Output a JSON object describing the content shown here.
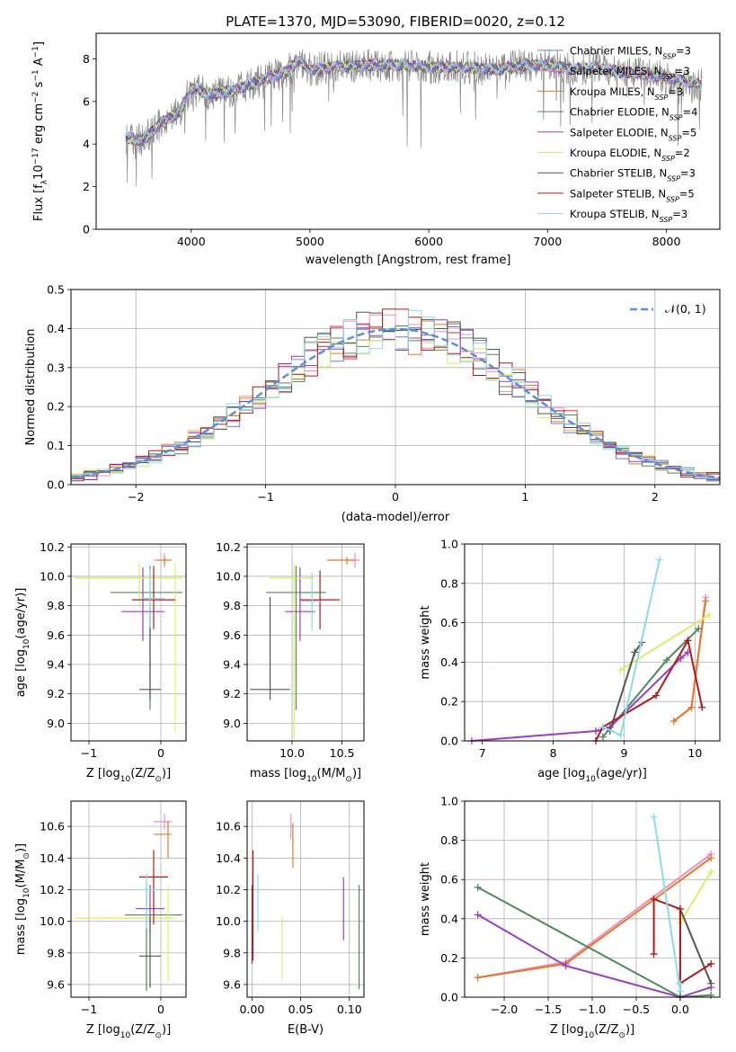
{
  "title": "PLATE=1370, MJD=53090, FIBERID=0020, z=0.12",
  "colors": {
    "series": [
      "#6a7de0",
      "#f28cc4",
      "#e07b2c",
      "#4e8a5a",
      "#9a3ec2",
      "#d8ee63",
      "#555555",
      "#b01a1a",
      "#88dde6"
    ],
    "grid": "#b0b0b0",
    "gauss": "#5b8fd6"
  },
  "chart_data": [
    {
      "id": "spectrum",
      "type": "line",
      "xlabel": "wavelength [Angstrom, rest frame]",
      "ylabel": "Flux [f_λ 10^-17 erg cm^-2 s^-1 A^-1]",
      "xlim": [
        3200,
        8450
      ],
      "ylim": [
        0,
        9.2
      ],
      "xticks": [
        4000,
        5000,
        6000,
        7000,
        8000
      ],
      "yticks": [
        0,
        2,
        4,
        6,
        8
      ],
      "grid": false,
      "legend_position": "top-right",
      "legend": [
        {
          "label": "Chabrier MILES, N",
          "sub": "SSP",
          "suffix": "=3"
        },
        {
          "label": "Salpeter MILES, N",
          "sub": "SSP",
          "suffix": "=3"
        },
        {
          "label": "Kroupa MILES, N",
          "sub": "SSP",
          "suffix": "=3"
        },
        {
          "label": "Chabrier ELODIE, N",
          "sub": "SSP",
          "suffix": "=4"
        },
        {
          "label": "Salpeter ELODIE, N",
          "sub": "SSP",
          "suffix": "=5"
        },
        {
          "label": "Kroupa ELODIE, N",
          "sub": "SSP",
          "suffix": "=2"
        },
        {
          "label": "Chabrier STELIB, N",
          "sub": "SSP",
          "suffix": "=3"
        },
        {
          "label": "Salpeter STELIB, N",
          "sub": "SSP",
          "suffix": "=5"
        },
        {
          "label": "Kroupa STELIB, N",
          "sub": "SSP",
          "suffix": "=3"
        }
      ],
      "continuum": {
        "x": [
          3450,
          3600,
          3750,
          3900,
          4000,
          4200,
          4400,
          4600,
          4800,
          4900,
          5000,
          5200,
          5500,
          5800,
          6000,
          6300,
          6600,
          6800,
          7000,
          7200,
          7400,
          7600,
          7800,
          8000,
          8200,
          8300
        ],
        "y": [
          4.3,
          4.2,
          5.0,
          5.5,
          6.6,
          6.3,
          6.6,
          7.0,
          7.4,
          7.9,
          7.5,
          7.6,
          7.7,
          7.7,
          7.6,
          7.6,
          7.5,
          7.7,
          7.7,
          7.5,
          7.6,
          7.4,
          7.3,
          7.1,
          6.9,
          6.8
        ]
      }
    },
    {
      "id": "residuals",
      "type": "step-histogram",
      "xlabel": "(data-model)/error",
      "ylabel": "Normed distribution",
      "xlim": [
        -2.5,
        2.5
      ],
      "ylim": [
        0,
        0.5
      ],
      "xticks": [
        -2,
        -1,
        0,
        1,
        2
      ],
      "yticks": [
        0.0,
        0.1,
        0.2,
        0.3,
        0.4,
        0.5
      ],
      "grid": true,
      "bins": {
        "start": -2.5,
        "width": 0.1,
        "count": 50
      },
      "gaussian": {
        "label": "𝒩(0, 1)",
        "mean": 0,
        "sigma": 1
      },
      "legend_position": "top-right"
    },
    {
      "id": "age-vs-Z",
      "type": "errorbar",
      "xlabel": "Z [log10(Z/Z⊙)]",
      "ylabel": "age [log10(age/yr)]",
      "xlim": [
        -1.25,
        0.35
      ],
      "ylim": [
        8.88,
        10.22
      ],
      "xticks": [
        -1,
        0
      ],
      "yticks": [
        9.0,
        9.2,
        9.4,
        9.6,
        9.8,
        10.0,
        10.2
      ],
      "grid": true,
      "points": [
        {
          "x": 0.05,
          "y": 10.11,
          "xerr": [
            0.15,
            0.05
          ],
          "yerr": [
            0.05,
            0.05
          ],
          "color": 1
        },
        {
          "x": 0.05,
          "y": 10.11,
          "xerr": [
            0.1,
            0.1
          ],
          "yerr": [
            0.03,
            0.02
          ],
          "color": 2
        },
        {
          "x": -0.15,
          "y": 9.89,
          "xerr": [
            0.55,
            0.45
          ],
          "yerr": [
            0.8,
            0.18
          ],
          "color": 3
        },
        {
          "x": -0.25,
          "y": 9.76,
          "xerr": [
            0.3,
            0.3
          ],
          "yerr": [
            0.2,
            0.3
          ],
          "color": 4
        },
        {
          "x": -0.3,
          "y": 9.99,
          "xerr": [
            0.9,
            0.6
          ],
          "yerr": [
            0.2,
            0.1
          ],
          "color": 5
        },
        {
          "x": 0.2,
          "y": 9.99,
          "xerr": [
            1.4,
            0.1
          ],
          "yerr": [
            1.05,
            0.1
          ],
          "color": 5
        },
        {
          "x": -0.15,
          "y": 9.23,
          "xerr": [
            0.15,
            0.15
          ],
          "yerr": [
            0.07,
            0.55
          ],
          "color": 6
        },
        {
          "x": -0.1,
          "y": 9.84,
          "xerr": [
            0.3,
            0.3
          ],
          "yerr": [
            0.2,
            0.23
          ],
          "color": 7
        },
        {
          "x": -0.15,
          "y": 9.85,
          "xerr": [
            0.1,
            0.2
          ],
          "yerr": [
            0.2,
            0.2
          ],
          "color": 8
        }
      ]
    },
    {
      "id": "age-vs-mass",
      "type": "errorbar",
      "xlabel": "mass [log10(M/M⊙)]",
      "ylabel": "",
      "xlim": [
        9.55,
        10.72
      ],
      "ylim": [
        8.88,
        10.22
      ],
      "xticks": [
        10.0,
        10.5
      ],
      "yticks": [
        9.0,
        9.2,
        9.4,
        9.6,
        9.8,
        10.0,
        10.2
      ],
      "grid": true,
      "points": [
        {
          "x": 10.63,
          "y": 10.11,
          "xerr": [
            0.1,
            0.05
          ],
          "yerr": [
            0.05,
            0.05
          ],
          "color": 1
        },
        {
          "x": 10.55,
          "y": 10.11,
          "xerr": [
            0.2,
            0.08
          ],
          "yerr": [
            0.03,
            0.02
          ],
          "color": 2
        },
        {
          "x": 10.04,
          "y": 9.89,
          "xerr": [
            0.3,
            0.3
          ],
          "yerr": [
            0.8,
            0.18
          ],
          "color": 3
        },
        {
          "x": 10.08,
          "y": 9.76,
          "xerr": [
            0.15,
            0.15
          ],
          "yerr": [
            0.2,
            0.3
          ],
          "color": 4
        },
        {
          "x": 10.02,
          "y": 9.99,
          "xerr": [
            0.25,
            0.2
          ],
          "yerr": [
            1.1,
            0.1
          ],
          "color": 5
        },
        {
          "x": 9.78,
          "y": 9.23,
          "xerr": [
            0.2,
            0.2
          ],
          "yerr": [
            0.07,
            0.63
          ],
          "color": 6
        },
        {
          "x": 10.28,
          "y": 9.84,
          "xerr": [
            0.2,
            0.2
          ],
          "yerr": [
            0.2,
            0.2
          ],
          "color": 7
        },
        {
          "x": 10.2,
          "y": 9.83,
          "xerr": [
            0.1,
            0.1
          ],
          "yerr": [
            0.2,
            0.2
          ],
          "color": 8
        }
      ]
    },
    {
      "id": "mass-weight-vs-age",
      "type": "line",
      "xlabel": "age [log10(age/yr)]",
      "ylabel": "mass weight",
      "xlim": [
        6.75,
        10.35
      ],
      "ylim": [
        0,
        1.0
      ],
      "xticks": [
        7,
        8,
        9,
        10
      ],
      "yticks": [
        0.0,
        0.2,
        0.4,
        0.6,
        0.8,
        1.0
      ],
      "grid": true,
      "series": [
        {
          "color": 1,
          "x": [
            9.7,
            9.95,
            10.15
          ],
          "y": [
            0.1,
            0.17,
            0.73
          ]
        },
        {
          "color": 2,
          "x": [
            9.7,
            9.95,
            10.15
          ],
          "y": [
            0.1,
            0.17,
            0.71
          ]
        },
        {
          "color": 3,
          "x": [
            8.7,
            9.6,
            10.05
          ],
          "y": [
            0.02,
            0.41,
            0.57
          ]
        },
        {
          "color": 4,
          "x": [
            6.85,
            8.6,
            8.8,
            9.8,
            9.9
          ],
          "y": [
            0.0,
            0.05,
            0.07,
            0.42,
            0.45
          ]
        },
        {
          "color": 5,
          "x": [
            8.95,
            10.2
          ],
          "y": [
            0.36,
            0.64
          ]
        },
        {
          "color": 6,
          "x": [
            8.8,
            9.15,
            9.25
          ],
          "y": [
            0.05,
            0.45,
            0.5
          ]
        },
        {
          "color": 7,
          "x": [
            8.6,
            8.7,
            9.45,
            9.9,
            10.1
          ],
          "y": [
            0.0,
            0.07,
            0.23,
            0.51,
            0.17
          ]
        },
        {
          "color": 8,
          "x": [
            8.7,
            8.95,
            9.5
          ],
          "y": [
            0.07,
            0.03,
            0.92
          ]
        }
      ]
    },
    {
      "id": "mass-vs-Z",
      "type": "errorbar",
      "xlabel": "Z [log10(Z/Z⊙)]",
      "ylabel": "mass [log10(M/M⊙)]",
      "xlim": [
        -1.25,
        0.35
      ],
      "ylim": [
        9.52,
        10.76
      ],
      "xticks": [
        -1,
        0
      ],
      "yticks": [
        9.6,
        9.8,
        10.0,
        10.2,
        10.4,
        10.6
      ],
      "grid": true,
      "points": [
        {
          "x": 0.05,
          "y": 10.63,
          "xerr": [
            0.15,
            0.1
          ],
          "yerr": [
            0.05,
            0.05
          ],
          "color": 1
        },
        {
          "x": 0.1,
          "y": 10.55,
          "xerr": [
            0.2,
            0.05
          ],
          "yerr": [
            0.15,
            0.08
          ],
          "color": 2
        },
        {
          "x": -0.2,
          "y": 10.04,
          "xerr": [
            0.3,
            0.5
          ],
          "yerr": [
            0.48,
            0.2
          ],
          "color": 3
        },
        {
          "x": -0.15,
          "y": 10.08,
          "xerr": [
            0.2,
            0.2
          ],
          "yerr": [
            0.15,
            0.15
          ],
          "color": 4
        },
        {
          "x": 0.1,
          "y": 10.02,
          "xerr": [
            1.3,
            0.1
          ],
          "yerr": [
            0.4,
            0.2
          ],
          "color": 5
        },
        {
          "x": -0.15,
          "y": 9.78,
          "xerr": [
            0.15,
            0.15
          ],
          "yerr": [
            0.2,
            0.25
          ],
          "color": 6
        },
        {
          "x": -0.1,
          "y": 10.28,
          "xerr": [
            0.2,
            0.2
          ],
          "yerr": [
            0.3,
            0.17
          ],
          "color": 7
        },
        {
          "x": -0.2,
          "y": 10.2,
          "xerr": [
            0.1,
            0.2
          ],
          "yerr": [
            0.25,
            0.1
          ],
          "color": 8
        }
      ]
    },
    {
      "id": "mass-vs-ebv",
      "type": "errorbar",
      "xlabel": "E(B-V)",
      "ylabel": "",
      "xlim": [
        -0.005,
        0.115
      ],
      "ylim": [
        9.52,
        10.76
      ],
      "xticks": [
        0.0,
        0.05,
        0.1
      ],
      "yticks": [
        9.6,
        9.8,
        10.0,
        10.2,
        10.4,
        10.6
      ],
      "grid": true,
      "points": [
        {
          "x": 0.04,
          "y": 10.6,
          "yerr": [
            0.08,
            0.08
          ],
          "color": 1
        },
        {
          "x": 0.042,
          "y": 10.48,
          "yerr": [
            0.14,
            0.14
          ],
          "color": 2
        },
        {
          "x": 0.11,
          "y": 9.9,
          "yerr": [
            0.33,
            0.33
          ],
          "color": 3
        },
        {
          "x": 0.094,
          "y": 10.08,
          "yerr": [
            0.2,
            0.2
          ],
          "color": 4
        },
        {
          "x": 0.031,
          "y": 9.83,
          "yerr": [
            0.2,
            0.2
          ],
          "color": 5
        },
        {
          "x": 0.0,
          "y": 9.98,
          "yerr": [
            0.25,
            0.25
          ],
          "color": 6
        },
        {
          "x": 0.001,
          "y": 10.1,
          "yerr": [
            0.35,
            0.35
          ],
          "color": 7
        },
        {
          "x": 0.006,
          "y": 10.12,
          "yerr": [
            0.18,
            0.18
          ],
          "color": 8
        }
      ]
    },
    {
      "id": "mass-weight-vs-Z",
      "type": "line",
      "xlabel": "Z [log10(Z/Z⊙)]",
      "ylabel": "mass weight",
      "xlim": [
        -2.45,
        0.45
      ],
      "ylim": [
        0,
        1.0
      ],
      "xticks": [
        -2.0,
        -1.5,
        -1.0,
        -0.5,
        0.0
      ],
      "yticks": [
        0.0,
        0.2,
        0.4,
        0.6,
        0.8,
        1.0
      ],
      "grid": true,
      "series": [
        {
          "color": 1,
          "x": [
            -2.3,
            -1.3,
            0.35
          ],
          "y": [
            0.1,
            0.18,
            0.73
          ]
        },
        {
          "color": 2,
          "x": [
            -2.3,
            -1.3,
            0.35
          ],
          "y": [
            0.1,
            0.17,
            0.71
          ]
        },
        {
          "color": 3,
          "x": [
            -2.3,
            0.0,
            0.35
          ],
          "y": [
            0.56,
            0.0,
            0.01
          ]
        },
        {
          "color": 4,
          "x": [
            -2.3,
            -1.3,
            0.0,
            0.35
          ],
          "y": [
            0.42,
            0.16,
            0.0,
            0.05
          ]
        },
        {
          "color": 5,
          "x": [
            0.0,
            0.35
          ],
          "y": [
            0.38,
            0.64
          ]
        },
        {
          "color": 6,
          "x": [
            0.0,
            0.0,
            0.35
          ],
          "y": [
            0.0,
            0.45,
            0.07
          ]
        },
        {
          "color": 7,
          "x": [
            -0.3,
            -0.3,
            0.0,
            0.0,
            0.35
          ],
          "y": [
            0.22,
            0.5,
            0.45,
            0.07,
            0.17
          ]
        },
        {
          "color": 8,
          "x": [
            -0.3,
            0.0,
            0.0
          ],
          "y": [
            0.92,
            0.03,
            0.07
          ]
        }
      ]
    }
  ]
}
